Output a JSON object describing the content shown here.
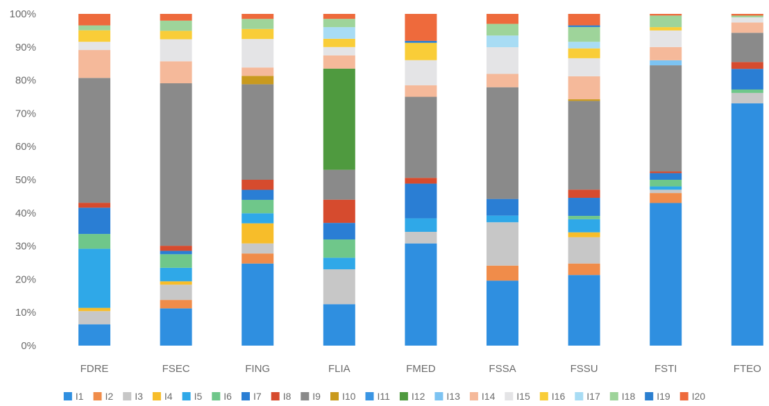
{
  "chart_data": {
    "type": "bar",
    "stacked": true,
    "title": "",
    "xlabel": "",
    "ylabel": "",
    "ylim": [
      0,
      100
    ],
    "y_ticks": [
      "0%",
      "10%",
      "20%",
      "30%",
      "40%",
      "50%",
      "60%",
      "70%",
      "80%",
      "90%",
      "100%"
    ],
    "grid": false,
    "legend_position": "bottom",
    "categories": [
      "FDRE",
      "FSEC",
      "FING",
      "FLIA",
      "FMED",
      "FSSA",
      "FSSU",
      "FSTI",
      "FTEO"
    ],
    "series": [
      {
        "name": "I1",
        "color": "#2f8fe0",
        "values": [
          6.5,
          11,
          24.5,
          12.5,
          26.5,
          19.5,
          21.5,
          43,
          70.5
        ]
      },
      {
        "name": "I2",
        "color": "#f08c4a",
        "values": [
          0,
          2.5,
          3,
          0,
          0,
          4.5,
          3.5,
          3,
          0
        ]
      },
      {
        "name": "I3",
        "color": "#c7c7c7",
        "values": [
          4,
          4.5,
          3,
          10.5,
          3,
          13,
          8,
          1,
          3
        ]
      },
      {
        "name": "I4",
        "color": "#f7bd2a",
        "values": [
          1,
          1,
          6,
          0,
          0,
          0,
          1.5,
          0,
          0
        ]
      },
      {
        "name": "I5",
        "color": "#2fa8e8",
        "values": [
          18,
          4,
          3,
          3.5,
          3.5,
          2,
          4,
          1,
          0
        ]
      },
      {
        "name": "I6",
        "color": "#6fc78a",
        "values": [
          4.5,
          4,
          4,
          5.5,
          0,
          0,
          1,
          2,
          1
        ]
      },
      {
        "name": "I7",
        "color": "#2a7ed4",
        "values": [
          8,
          1,
          3,
          5,
          9,
          5,
          5.5,
          2,
          6
        ]
      },
      {
        "name": "I8",
        "color": "#d64b2e",
        "values": [
          1.5,
          1.5,
          3,
          7,
          1.5,
          0,
          2.5,
          0.5,
          2
        ]
      },
      {
        "name": "I9",
        "color": "#8a8a8a",
        "values": [
          38,
          48,
          28.5,
          9,
          21,
          33.5,
          27,
          32,
          8.5
        ]
      },
      {
        "name": "I10",
        "color": "#c99a1e",
        "values": [
          0,
          0,
          2.5,
          0,
          0,
          0,
          0.5,
          0,
          0
        ]
      },
      {
        "name": "I11",
        "color": "#3a95e3",
        "values": [
          0,
          0,
          0,
          0,
          0,
          0,
          0,
          0,
          0
        ]
      },
      {
        "name": "I12",
        "color": "#4f9a3f",
        "values": [
          0,
          0,
          0,
          30.5,
          0,
          0,
          0,
          0,
          0
        ]
      },
      {
        "name": "I13",
        "color": "#7cc3f2",
        "values": [
          0,
          0,
          0,
          0,
          0,
          0,
          0,
          1.5,
          0
        ]
      },
      {
        "name": "I14",
        "color": "#f5b99a",
        "values": [
          8.5,
          6.5,
          2.5,
          4,
          3,
          4,
          7,
          4,
          3
        ]
      },
      {
        "name": "I15",
        "color": "#e4e4e6",
        "values": [
          2.5,
          6.5,
          8.5,
          2.5,
          6.5,
          8,
          5.5,
          5,
          1.5
        ]
      },
      {
        "name": "I16",
        "color": "#f9cd38",
        "values": [
          3.5,
          2.5,
          3,
          2.5,
          4.5,
          0,
          3,
          1,
          0
        ]
      },
      {
        "name": "I17",
        "color": "#a8dcf4",
        "values": [
          0,
          0,
          0,
          3.5,
          0,
          3.5,
          2,
          0,
          0
        ]
      },
      {
        "name": "I18",
        "color": "#9ed49a",
        "values": [
          1.5,
          3,
          3,
          2.5,
          0,
          3.5,
          4.5,
          3.5,
          0.5
        ]
      },
      {
        "name": "I19",
        "color": "#2b7fd0",
        "values": [
          0,
          0,
          0,
          0,
          0.5,
          0,
          0.5,
          0,
          0
        ]
      },
      {
        "name": "I20",
        "color": "#ee6a3c",
        "values": [
          3.5,
          2,
          1.5,
          1.5,
          7,
          3,
          3.5,
          0.5,
          0.5
        ]
      }
    ]
  }
}
